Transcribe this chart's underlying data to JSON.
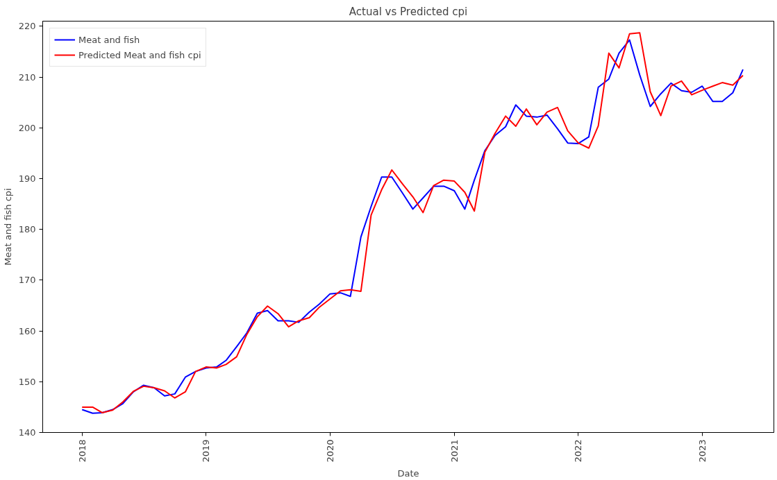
{
  "chart_data": {
    "type": "line",
    "title": "Actual vs Predicted cpi",
    "xlabel": "Date",
    "ylabel": "Meat and fish cpi",
    "x": [
      "2018-01",
      "2018-02",
      "2018-03",
      "2018-04",
      "2018-05",
      "2018-06",
      "2018-07",
      "2018-08",
      "2018-09",
      "2018-10",
      "2018-11",
      "2018-12",
      "2019-01",
      "2019-02",
      "2019-03",
      "2019-04",
      "2019-05",
      "2019-06",
      "2019-07",
      "2019-08",
      "2019-09",
      "2019-10",
      "2019-11",
      "2019-12",
      "2020-01",
      "2020-02",
      "2020-03",
      "2020-04",
      "2020-05",
      "2020-06",
      "2020-07",
      "2020-08",
      "2020-09",
      "2020-10",
      "2020-11",
      "2020-12",
      "2021-01",
      "2021-02",
      "2021-03",
      "2021-04",
      "2021-05",
      "2021-06",
      "2021-07",
      "2021-08",
      "2021-09",
      "2021-10",
      "2021-11",
      "2021-12",
      "2022-01",
      "2022-02",
      "2022-03",
      "2022-04",
      "2022-05",
      "2022-06",
      "2022-07",
      "2022-08",
      "2022-09",
      "2022-10",
      "2022-11",
      "2022-12",
      "2023-01",
      "2023-02",
      "2023-03",
      "2023-04",
      "2023-05"
    ],
    "series": [
      {
        "name": "Meat and fish",
        "color": "#0000ff",
        "values": [
          144.5,
          143.8,
          143.9,
          144.5,
          145.7,
          148.0,
          149.3,
          148.8,
          147.2,
          147.6,
          150.9,
          152.0,
          152.7,
          152.9,
          154.2,
          156.9,
          159.6,
          163.5,
          164.0,
          162.0,
          162.0,
          161.7,
          163.7,
          165.3,
          167.3,
          167.5,
          166.8,
          178.5,
          184.5,
          190.3,
          190.3,
          187.2,
          184.0,
          186.2,
          188.5,
          188.5,
          187.6,
          184.0,
          189.7,
          195.5,
          198.5,
          200.2,
          204.5,
          202.3,
          202.1,
          202.5,
          199.8,
          197.0,
          196.9,
          198.2,
          208.0,
          209.6,
          214.7,
          217.3,
          210.4,
          204.2,
          206.7,
          208.8,
          207.3,
          207.0,
          208.2,
          205.2,
          205.2,
          206.9,
          211.5
        ]
      },
      {
        "name": "Predicted Meat and fish cpi",
        "color": "#ff0000",
        "values": [
          145.0,
          145.0,
          143.9,
          144.4,
          146.0,
          148.1,
          149.1,
          148.8,
          148.2,
          146.8,
          148.0,
          152.0,
          152.9,
          152.7,
          153.4,
          154.9,
          159.3,
          162.8,
          164.9,
          163.4,
          160.8,
          162.0,
          162.6,
          164.7,
          166.3,
          167.9,
          168.1,
          167.8,
          182.8,
          187.8,
          191.7,
          189.0,
          186.4,
          183.3,
          188.6,
          189.7,
          189.5,
          187.3,
          183.6,
          195.2,
          198.9,
          202.3,
          200.3,
          203.7,
          200.6,
          203.1,
          204.0,
          199.4,
          197.0,
          196.0,
          200.4,
          214.7,
          211.8,
          218.5,
          218.7,
          207.1,
          202.4,
          208.2,
          209.2,
          206.5,
          207.4,
          208.2,
          208.9,
          208.4,
          210.3
        ]
      }
    ],
    "xlim": [
      "2017-09-07",
      "2023-07-31"
    ],
    "xticks": [
      {
        "value": "2018-01-01",
        "label": "2018"
      },
      {
        "value": "2019-01-01",
        "label": "2019"
      },
      {
        "value": "2020-01-01",
        "label": "2020"
      },
      {
        "value": "2021-01-01",
        "label": "2021"
      },
      {
        "value": "2022-01-01",
        "label": "2022"
      },
      {
        "value": "2023-01-01",
        "label": "2023"
      }
    ],
    "ylim": [
      140,
      221
    ],
    "yticks": [
      140,
      150,
      160,
      170,
      180,
      190,
      200,
      210,
      220
    ],
    "legend": "top left",
    "grid": false,
    "marker": "none",
    "line_style": "solid"
  }
}
